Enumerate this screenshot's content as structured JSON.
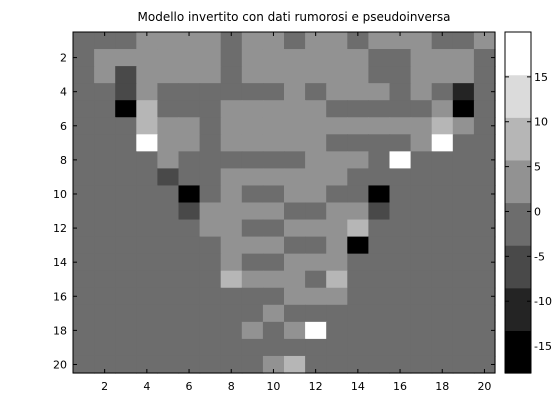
{
  "chart_data": {
    "type": "heatmap",
    "title": "Modello invertito con dati rumorosi e pseudoinversa",
    "colormap": "gray",
    "x": [
      1,
      2,
      3,
      4,
      5,
      6,
      7,
      8,
      9,
      10,
      11,
      12,
      13,
      14,
      15,
      16,
      17,
      18,
      19,
      20
    ],
    "y": [
      1,
      2,
      3,
      4,
      5,
      6,
      7,
      8,
      9,
      10,
      11,
      12,
      13,
      14,
      15,
      16,
      17,
      18,
      19,
      20
    ],
    "xticks": [
      2,
      4,
      6,
      8,
      10,
      12,
      14,
      16,
      18,
      20
    ],
    "yticks": [
      2,
      4,
      6,
      8,
      10,
      12,
      14,
      16,
      18,
      20
    ],
    "xlim": [
      0.5,
      20.5
    ],
    "ylim": [
      0.5,
      20.5
    ],
    "clim": [
      -18,
      20
    ],
    "colorbar_ticks": [
      -15,
      -10,
      -5,
      0,
      5,
      10,
      15
    ],
    "values": [
      [
        -2,
        -2,
        -2,
        3,
        3,
        3,
        3,
        -2,
        3,
        3,
        -2,
        3,
        3,
        -2,
        3,
        3,
        3,
        -2,
        -2,
        3
      ],
      [
        -2,
        3,
        3,
        3,
        3,
        3,
        3,
        -2,
        3,
        3,
        3,
        3,
        3,
        3,
        -2,
        -2,
        3,
        3,
        3,
        -2
      ],
      [
        -2,
        3,
        -8,
        3,
        3,
        3,
        3,
        -2,
        3,
        3,
        3,
        3,
        3,
        3,
        -2,
        -2,
        3,
        3,
        3,
        -2
      ],
      [
        -2,
        -2,
        -8,
        3,
        -2,
        -2,
        -2,
        -2,
        -2,
        -2,
        3,
        -2,
        3,
        3,
        3,
        -2,
        3,
        -2,
        -12,
        -2
      ],
      [
        -2,
        -2,
        -14,
        8,
        -2,
        -2,
        -2,
        3,
        3,
        3,
        3,
        3,
        -2,
        -2,
        -2,
        -2,
        -2,
        3,
        -18,
        -2
      ],
      [
        -2,
        -2,
        -2,
        8,
        3,
        3,
        -2,
        3,
        3,
        3,
        3,
        3,
        3,
        3,
        3,
        3,
        3,
        8,
        3,
        -2
      ],
      [
        -2,
        -2,
        -2,
        20,
        3,
        3,
        -2,
        3,
        3,
        3,
        3,
        3,
        -2,
        -2,
        -2,
        -2,
        3,
        20,
        -2,
        -2
      ],
      [
        -2,
        -2,
        -2,
        -2,
        3,
        -2,
        -2,
        -2,
        -2,
        -2,
        -2,
        3,
        3,
        3,
        -2,
        20,
        -2,
        -2,
        -2,
        -2
      ],
      [
        -2,
        -2,
        -2,
        -2,
        -8,
        -2,
        -2,
        3,
        3,
        3,
        3,
        3,
        3,
        -2,
        -2,
        -2,
        -2,
        -2,
        -2,
        -2
      ],
      [
        -2,
        -2,
        -2,
        -2,
        -2,
        -14,
        -2,
        3,
        -2,
        -2,
        3,
        3,
        -2,
        -2,
        -18,
        -2,
        -2,
        -2,
        -2,
        -2
      ],
      [
        -2,
        -2,
        -2,
        -2,
        -2,
        -8,
        3,
        3,
        3,
        3,
        -2,
        -2,
        3,
        3,
        -8,
        -2,
        -2,
        -2,
        -2,
        -2
      ],
      [
        -2,
        -2,
        -2,
        -2,
        -2,
        -2,
        3,
        3,
        -2,
        -2,
        3,
        3,
        3,
        8,
        -2,
        -2,
        -2,
        -2,
        -2,
        -2
      ],
      [
        -2,
        -2,
        -2,
        -2,
        -2,
        -2,
        -2,
        3,
        3,
        3,
        -2,
        -2,
        3,
        -14,
        -2,
        -2,
        -2,
        -2,
        -2,
        -2
      ],
      [
        -2,
        -2,
        -2,
        -2,
        -2,
        -2,
        -2,
        3,
        -2,
        -2,
        3,
        3,
        3,
        -2,
        -2,
        -2,
        -2,
        -2,
        -2,
        -2
      ],
      [
        -2,
        -2,
        -2,
        -2,
        -2,
        -2,
        -2,
        8,
        3,
        3,
        3,
        -2,
        8,
        -2,
        -2,
        -2,
        -2,
        -2,
        -2,
        -2
      ],
      [
        -2,
        -2,
        -2,
        -2,
        -2,
        -2,
        -2,
        -2,
        -2,
        -2,
        3,
        3,
        3,
        -2,
        -2,
        -2,
        -2,
        -2,
        -2,
        -2
      ],
      [
        -2,
        -2,
        -2,
        -2,
        -2,
        -2,
        -2,
        -2,
        -2,
        3,
        -2,
        -2,
        -2,
        -2,
        -2,
        -2,
        -2,
        -2,
        -2,
        -2
      ],
      [
        -2,
        -2,
        -2,
        -2,
        -2,
        -2,
        -2,
        -2,
        3,
        -2,
        3,
        16,
        -2,
        -2,
        -2,
        -2,
        -2,
        -2,
        -2,
        -2
      ],
      [
        -2,
        -2,
        -2,
        -2,
        -2,
        -2,
        -2,
        -2,
        -2,
        -2,
        -2,
        -2,
        -2,
        -2,
        -2,
        -2,
        -2,
        -2,
        -2,
        -2
      ],
      [
        -2,
        -2,
        -2,
        -2,
        -2,
        -2,
        -2,
        -2,
        -2,
        3,
        8,
        -2,
        -2,
        -2,
        -2,
        -2,
        -2,
        -2,
        -2,
        -2
      ]
    ]
  }
}
